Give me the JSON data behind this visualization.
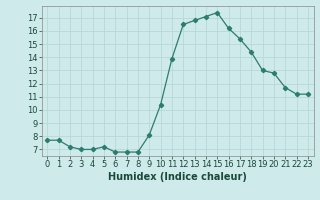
{
  "x": [
    0,
    1,
    2,
    3,
    4,
    5,
    6,
    7,
    8,
    9,
    10,
    11,
    12,
    13,
    14,
    15,
    16,
    17,
    18,
    19,
    20,
    21,
    22,
    23
  ],
  "y": [
    7.7,
    7.7,
    7.2,
    7.0,
    7.0,
    7.2,
    6.8,
    6.8,
    6.8,
    8.1,
    10.4,
    13.9,
    16.5,
    16.8,
    17.1,
    17.4,
    16.2,
    15.4,
    14.4,
    13.0,
    12.8,
    11.7,
    11.2,
    11.2
  ],
  "line_color": "#2d7d6e",
  "marker": "D",
  "marker_size": 2.2,
  "bg_color": "#ceeaea",
  "grid_color": "#b8d8d8",
  "xlabel": "Humidex (Indice chaleur)",
  "ylabel_ticks": [
    7,
    8,
    9,
    10,
    11,
    12,
    13,
    14,
    15,
    16,
    17
  ],
  "xlim": [
    -0.5,
    23.5
  ],
  "ylim": [
    6.5,
    17.9
  ],
  "xtick_labels": [
    "0",
    "1",
    "2",
    "3",
    "4",
    "5",
    "6",
    "7",
    "8",
    "9",
    "10",
    "11",
    "12",
    "13",
    "14",
    "15",
    "16",
    "17",
    "18",
    "19",
    "20",
    "21",
    "22",
    "23"
  ],
  "font_color": "#1a4a3a",
  "label_fontsize": 7.0,
  "tick_fontsize": 6.0
}
